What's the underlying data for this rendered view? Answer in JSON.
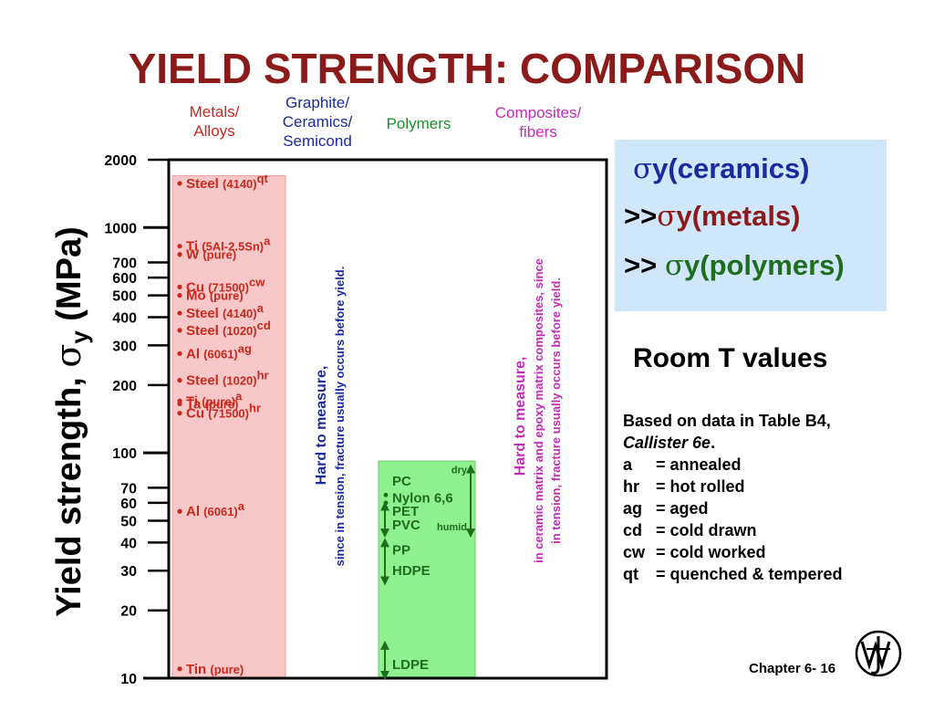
{
  "title": "YIELD STRENGTH: COMPARISON",
  "categories": [
    {
      "label_lines": [
        "Metals/",
        "Alloys"
      ],
      "color": "#c8281e"
    },
    {
      "label_lines": [
        "Graphite/",
        "Ceramics/",
        "Semicond"
      ],
      "color": "#1a2a9c"
    },
    {
      "label_lines": [
        "Polymers"
      ],
      "color": "#1f8f2a"
    },
    {
      "label_lines": [
        "Composites/",
        "fibers"
      ],
      "color": "#c42ab8"
    }
  ],
  "chart_data": {
    "type": "bar",
    "ylabel_text": "Yield strength,",
    "ylabel_symbol": "σ",
    "ylabel_sub": "y",
    "ylabel_unit": "(MPa)",
    "yscale": "log",
    "ylim": [
      10,
      2000
    ],
    "yticks": [
      {
        "value": 2000,
        "label": "2000"
      },
      {
        "value": 1000,
        "label": "1000"
      },
      {
        "value": 700,
        "label": "700"
      },
      {
        "value": 600,
        "label": "600"
      },
      {
        "value": 500,
        "label": "500"
      },
      {
        "value": 400,
        "label": "400"
      },
      {
        "value": 300,
        "label": "300"
      },
      {
        "value": 200,
        "label": "200"
      },
      {
        "value": 100,
        "label": "100"
      },
      {
        "value": 70,
        "label": "70"
      },
      {
        "value": 60,
        "label": "60"
      },
      {
        "value": 50,
        "label": "50"
      },
      {
        "value": 40,
        "label": "40"
      },
      {
        "value": 30,
        "label": "30"
      },
      {
        "value": 20,
        "label": "20"
      },
      {
        "value": 10,
        "label": "10"
      }
    ],
    "metals": {
      "range": [
        10,
        1700
      ],
      "color": "#f8c8c8",
      "points": [
        {
          "name": "Steel",
          "spec": "(4140)",
          "sup": "qt",
          "value": 1570
        },
        {
          "name": "Ti",
          "spec": "(5Al-2.5Sn)",
          "sup": "a",
          "value": 827
        },
        {
          "name": "W",
          "spec": "(pure)",
          "sup": "",
          "value": 760
        },
        {
          "name": "Cu",
          "spec": "(71500)",
          "sup": "cw",
          "value": 545
        },
        {
          "name": "Mo",
          "spec": "(pure)",
          "sup": "",
          "value": 500
        },
        {
          "name": "Steel",
          "spec": "(4140)",
          "sup": "a",
          "value": 417
        },
        {
          "name": "Steel",
          "spec": "(1020)",
          "sup": "cd",
          "value": 350
        },
        {
          "name": "Al",
          "spec": "(6061)",
          "sup": "ag",
          "value": 276
        },
        {
          "name": "Steel",
          "spec": "(1020)",
          "sup": "hr",
          "value": 210
        },
        {
          "name": "Ti",
          "spec": "(pure)",
          "sup": "a",
          "value": 170
        },
        {
          "name": "Ta",
          "spec": "(pure)",
          "sup": "",
          "value": 165
        },
        {
          "name": "Cu",
          "spec": "(71500)",
          "sup": "hr",
          "value": 150
        },
        {
          "name": "Al",
          "spec": "(6061)",
          "sup": "a",
          "value": 55
        },
        {
          "name": "Tin",
          "spec": "(pure)",
          "sup": "",
          "value": 11
        }
      ]
    },
    "polymers": {
      "range": [
        10,
        92
      ],
      "color": "#8ff08f",
      "labels": [
        {
          "name": "PC",
          "value": 75
        },
        {
          "name": "Nylon 6,6",
          "value": 63
        },
        {
          "name": "PET",
          "value": 55
        },
        {
          "name": "PVC",
          "value": 48
        },
        {
          "name": "PP",
          "value": 37
        },
        {
          "name": "HDPE",
          "value": 30
        },
        {
          "name": "LDPE",
          "value": 11.5
        }
      ],
      "nylon_dry": "dry",
      "nylon_humid": "humid"
    },
    "notes": [
      {
        "line1": "Hard to measure,",
        "line2": "since in tension, fracture usually occurs before yield.",
        "color": "#1a2a9c"
      },
      {
        "line1": "Hard to measure,",
        "line2": "in ceramic matrix and epoxy matrix composites, since",
        "line3": "in tension, fracture usually occurs before yield.",
        "color": "#c42ab8"
      }
    ]
  },
  "info_box": {
    "sym": "σ",
    "line1_rest": "y(ceramics)",
    "line2_prefix": ">>",
    "line2_rest": "y(metals)",
    "line3_prefix": ">> ",
    "line3_rest": "y(polymers)",
    "colors": {
      "ceramics": "#1a2a9c",
      "metals": "#8b1a1a",
      "polymers": "#1f6e1f"
    }
  },
  "room_t": "Room T values",
  "legend": {
    "based_on": "Based on data in Table B4,",
    "callister": "Callister 6e",
    "callister_suffix": ".",
    "abbrevs": [
      {
        "abbr": "a",
        "pad": "     ",
        "meaning": "= annealed"
      },
      {
        "abbr": "hr",
        "pad": "  ",
        "meaning": "= hot rolled"
      },
      {
        "abbr": "ag",
        "pad": "  ",
        "meaning": "= aged"
      },
      {
        "abbr": "cd",
        "pad": "  ",
        "meaning": "= cold drawn"
      },
      {
        "abbr": "cw",
        "pad": "  ",
        "meaning": "= cold worked"
      },
      {
        "abbr": "qt",
        "pad": "  ",
        "meaning": "= quenched & tempered"
      }
    ]
  },
  "chapter": "Chapter 6- 16"
}
